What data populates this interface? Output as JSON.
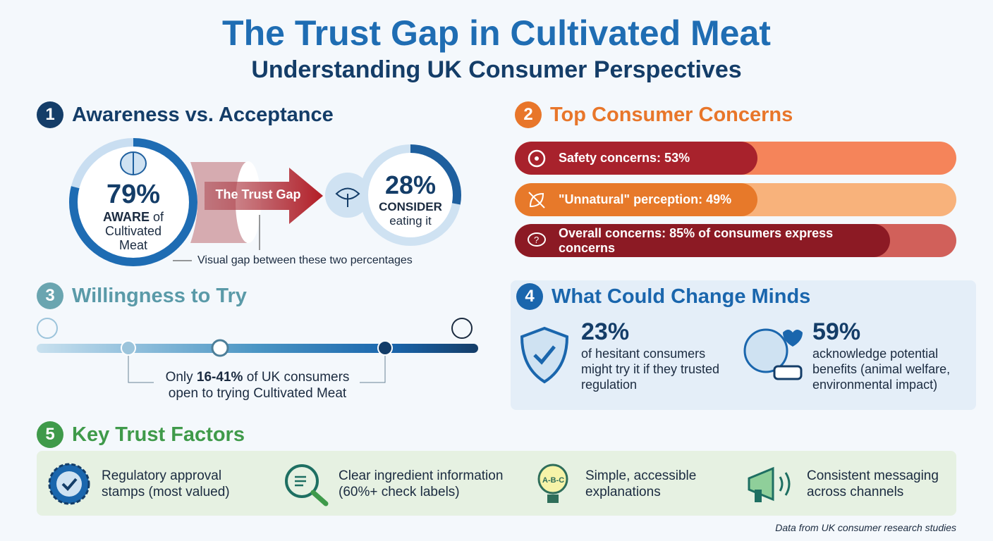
{
  "header": {
    "title": "The Trust Gap in Cultivated Meat",
    "subtitle": "Understanding UK Consumer Perspectives"
  },
  "s1": {
    "num": "1",
    "title": "Awareness vs. Acceptance",
    "aware_pct": "79%",
    "aware_bold": "AWARE",
    "aware_of": " of",
    "aware_rest": "Cultivated Meat",
    "aware_value": 79,
    "gap_label": "The Trust Gap",
    "consider_pct": "28%",
    "consider_bold": "CONSIDER",
    "consider_rest": "eating it",
    "consider_value": 28,
    "note": "Visual gap between these two percentages"
  },
  "s2": {
    "num": "2",
    "title": "Top Consumer Concerns",
    "color": "#e8762a",
    "bars": [
      {
        "label": "Safety concerns: 53%",
        "value": 53,
        "icon": "biohazard-icon"
      },
      {
        "label": "\"Unnatural\" perception: 49%",
        "value": 49,
        "icon": "crossed-leaf-icon"
      },
      {
        "label": "Overall concerns: 85% of consumers express concerns",
        "value": 85,
        "icon": "question-bubble-icon"
      }
    ]
  },
  "s3": {
    "num": "3",
    "title": "Willingness to Try",
    "text_pre": "Only ",
    "text_bold": "16-41%",
    "text_post": " of UK consumers",
    "text_line2": "open to trying Cultivated Meat",
    "range_low": 16,
    "range_high": 41
  },
  "s4": {
    "num": "4",
    "title": "What Could Change Minds",
    "a_pct": "23%",
    "a_text": "of hesitant consumers might try it if they trusted regulation",
    "b_pct": "59%",
    "b_text": "acknowledge potential benefits (animal welfare, environmental impact)"
  },
  "s5": {
    "num": "5",
    "title": "Key Trust Factors",
    "items": [
      {
        "text": "Regulatory approval stamps (most valued)",
        "icon": "approval-seal-icon"
      },
      {
        "text": "Clear ingredient information (60%+ check labels)",
        "icon": "magnifier-label-icon"
      },
      {
        "text": "Simple, accessible explanations",
        "icon": "lightbulb-abc-icon"
      },
      {
        "text": "Consistent messaging across channels",
        "icon": "megaphone-icon"
      }
    ]
  },
  "footer": "Data from UK consumer research studies"
}
